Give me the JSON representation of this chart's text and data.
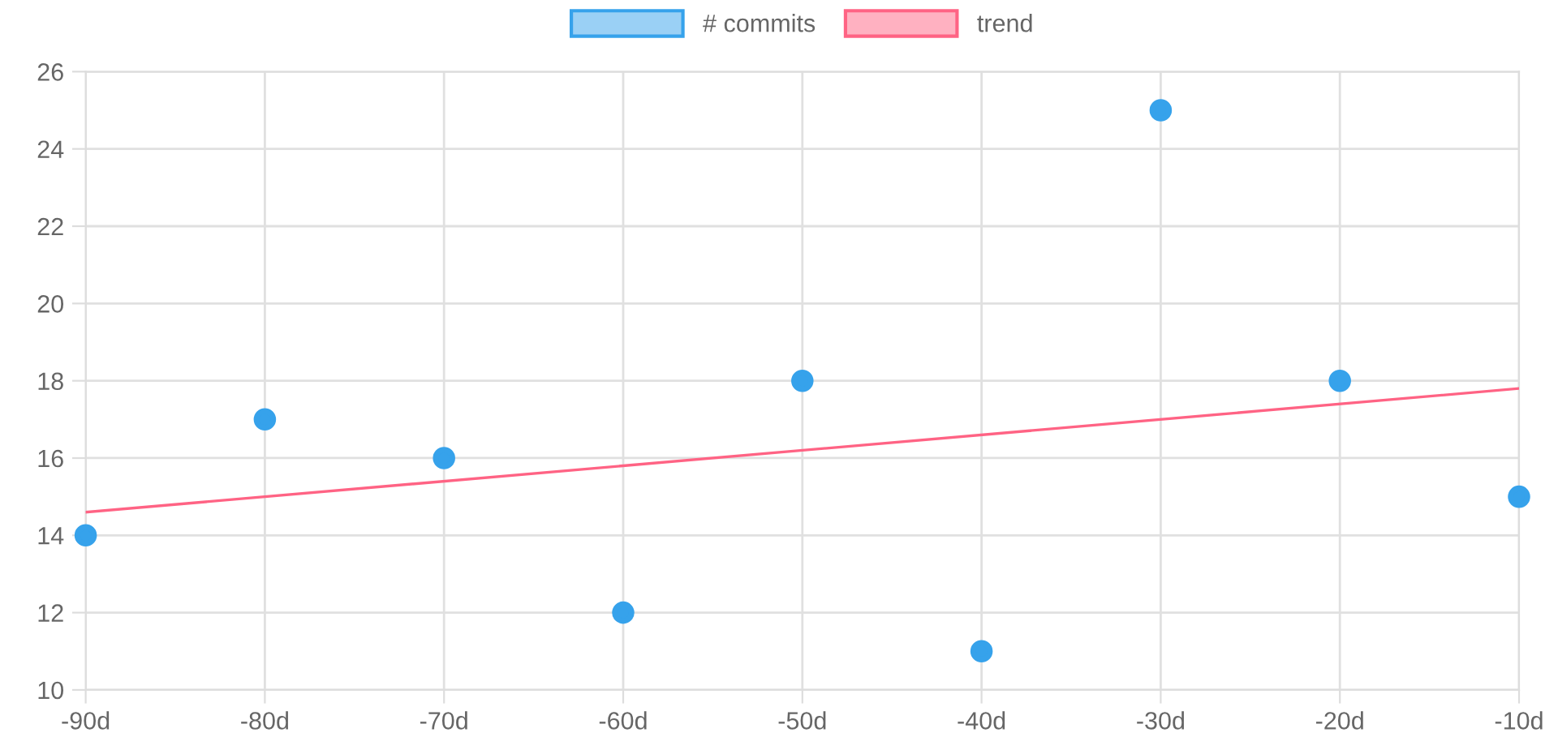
{
  "chart_data": {
    "type": "scatter",
    "x": [
      -90,
      -80,
      -70,
      -60,
      -50,
      -40,
      -30,
      -20,
      -10
    ],
    "series": [
      {
        "name": "# commits",
        "marker": "circle",
        "color": "#36a2eb",
        "values": [
          14,
          17,
          16,
          12,
          18,
          11,
          25,
          18,
          15
        ]
      },
      {
        "name": "trend",
        "type": "line",
        "color": "#ff6384",
        "x": [
          -90,
          -10
        ],
        "values": [
          14.6,
          17.8
        ]
      }
    ],
    "xlim": [
      -90,
      -10
    ],
    "xticks": [
      {
        "value": -90,
        "label": "-90d"
      },
      {
        "value": -80,
        "label": "-80d"
      },
      {
        "value": -70,
        "label": "-70d"
      },
      {
        "value": -60,
        "label": "-60d"
      },
      {
        "value": -50,
        "label": "-50d"
      },
      {
        "value": -40,
        "label": "-40d"
      },
      {
        "value": -30,
        "label": "-30d"
      },
      {
        "value": -20,
        "label": "-20d"
      },
      {
        "value": -10,
        "label": "-10d"
      }
    ],
    "ylim": [
      10,
      26
    ],
    "yticks": [
      10,
      12,
      14,
      16,
      18,
      20,
      22,
      24,
      26
    ],
    "grid": true,
    "legend": "top",
    "line_style": "solid"
  }
}
